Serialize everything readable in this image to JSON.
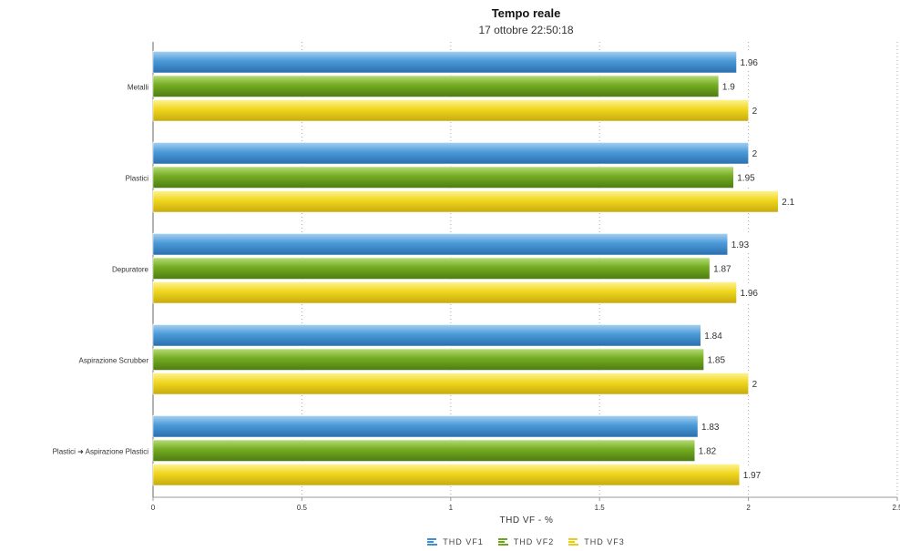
{
  "chart_data": {
    "type": "bar",
    "orientation": "horizontal",
    "title": "Tempo reale",
    "subtitle": "17 ottobre 22:50:18",
    "xlabel": "THD VF - %",
    "xlim": [
      0,
      2.5
    ],
    "xticks": [
      "0",
      "0.5",
      "1",
      "1.5",
      "2",
      "2.5"
    ],
    "categories": [
      "Metalli",
      "Plastici",
      "Depuratore",
      "Aspirazione Scrubber",
      "Plastici ➜ Aspirazione Plastici"
    ],
    "series": [
      {
        "name": "THD VF1",
        "color": "#3f8fd2",
        "values": [
          1.96,
          2,
          1.93,
          1.84,
          1.83
        ]
      },
      {
        "name": "THD VF2",
        "color": "#6aa51c",
        "values": [
          1.9,
          1.95,
          1.87,
          1.85,
          1.82
        ]
      },
      {
        "name": "THD VF3",
        "color": "#e8cc17",
        "values": [
          2,
          2.1,
          1.96,
          2,
          1.97
        ]
      }
    ],
    "grid": true,
    "legend_position": "bottom"
  }
}
